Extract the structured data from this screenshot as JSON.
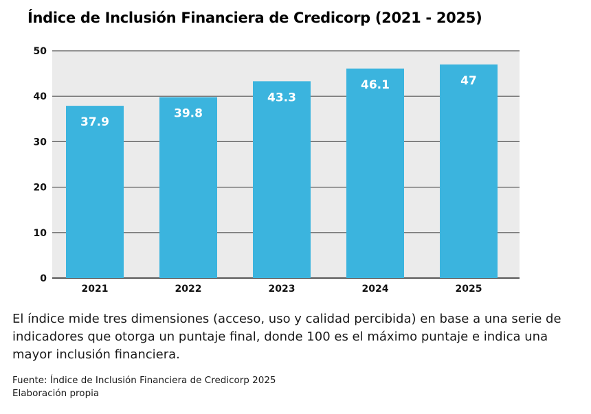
{
  "chart_data": {
    "type": "bar",
    "title": "Índice de Inclusión Financiera de Credicorp (2021 - 2025)",
    "categories": [
      "2021",
      "2022",
      "2023",
      "2024",
      "2025"
    ],
    "values": [
      37.9,
      39.8,
      43.3,
      46.1,
      47
    ],
    "value_labels": [
      "37.9",
      "39.8",
      "43.3",
      "46.1",
      "47"
    ],
    "y_ticks": [
      0,
      10,
      20,
      30,
      40,
      50
    ],
    "ylim": [
      0,
      50
    ],
    "xlabel": "",
    "ylabel": "",
    "grid": true,
    "colors": {
      "bar": "#3bb4de",
      "plot_background": "#ebebeb",
      "grid": "#555555",
      "value_label": "#ffffff"
    }
  },
  "description": "El índice mide tres dimensiones (acceso, uso y calidad percibida) en base a una serie de indicadores que otorga un puntaje final, donde 100 es el máximo puntaje e indica una mayor inclusión financiera.",
  "source": {
    "line1": "Fuente: Índice de Inclusión Financiera de Credicorp 2025",
    "line2": "Elaboración propia"
  }
}
